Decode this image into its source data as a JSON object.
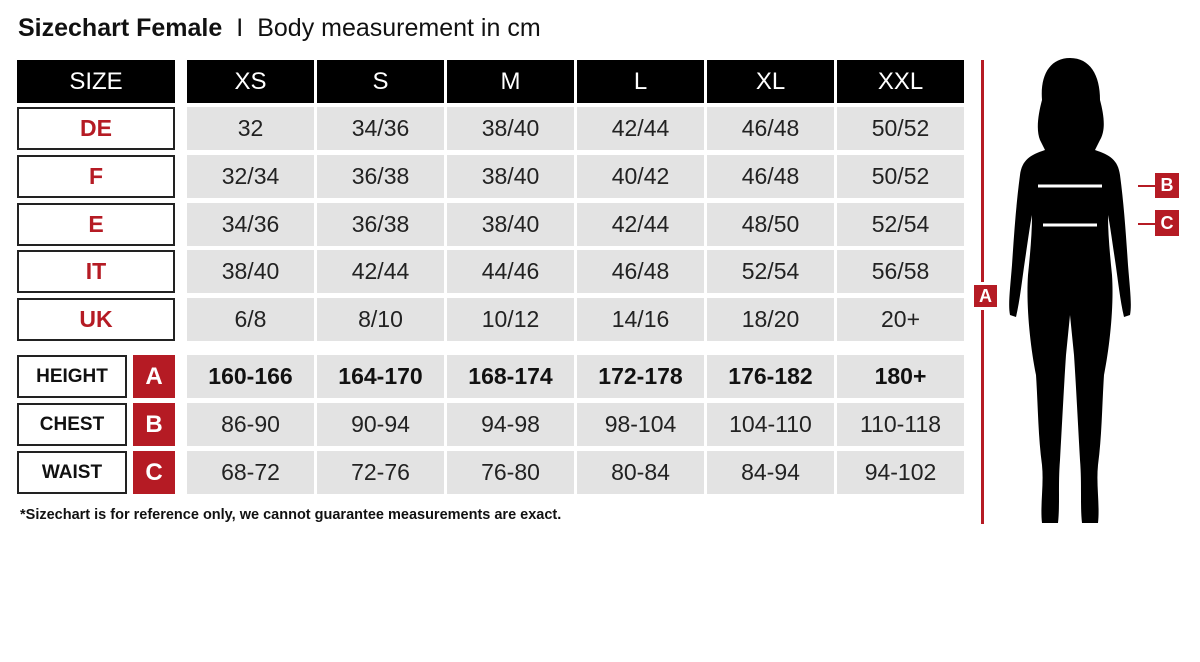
{
  "title": {
    "main": "Sizechart Female",
    "separator": "I",
    "subtitle": "Body measurement in cm"
  },
  "table": {
    "corner": "SIZE",
    "sizes": [
      "XS",
      "S",
      "M",
      "L",
      "XL",
      "XXL"
    ],
    "conversion_rows": [
      {
        "label": "DE",
        "values": [
          "32",
          "34/36",
          "38/40",
          "42/44",
          "46/48",
          "50/52"
        ]
      },
      {
        "label": "F",
        "values": [
          "32/34",
          "36/38",
          "38/40",
          "40/42",
          "46/48",
          "50/52"
        ]
      },
      {
        "label": "E",
        "values": [
          "34/36",
          "36/38",
          "38/40",
          "42/44",
          "48/50",
          "52/54"
        ]
      },
      {
        "label": "IT",
        "values": [
          "38/40",
          "42/44",
          "44/46",
          "46/48",
          "52/54",
          "56/58"
        ]
      },
      {
        "label": "UK",
        "values": [
          "6/8",
          "8/10",
          "10/12",
          "14/16",
          "18/20",
          "20+"
        ]
      }
    ],
    "measurement_rows": [
      {
        "label": "HEIGHT",
        "letter": "A",
        "values": [
          "160-166",
          "164-170",
          "168-174",
          "172-178",
          "176-182",
          "180+"
        ]
      },
      {
        "label": "CHEST",
        "letter": "B",
        "values": [
          "86-90",
          "90-94",
          "94-98",
          "98-104",
          "104-110",
          "110-118"
        ]
      },
      {
        "label": "WAIST",
        "letter": "C",
        "values": [
          "68-72",
          "72-76",
          "76-80",
          "80-84",
          "84-94",
          "94-102"
        ]
      }
    ]
  },
  "figure": {
    "height_marker": "A",
    "chest_marker": "B",
    "waist_marker": "C"
  },
  "footnote": "*Sizechart is for reference only, we cannot guarantee measurements are exact.",
  "colors": {
    "accent": "#b51b24",
    "header": "#000000",
    "cell": "#e3e3e3"
  }
}
